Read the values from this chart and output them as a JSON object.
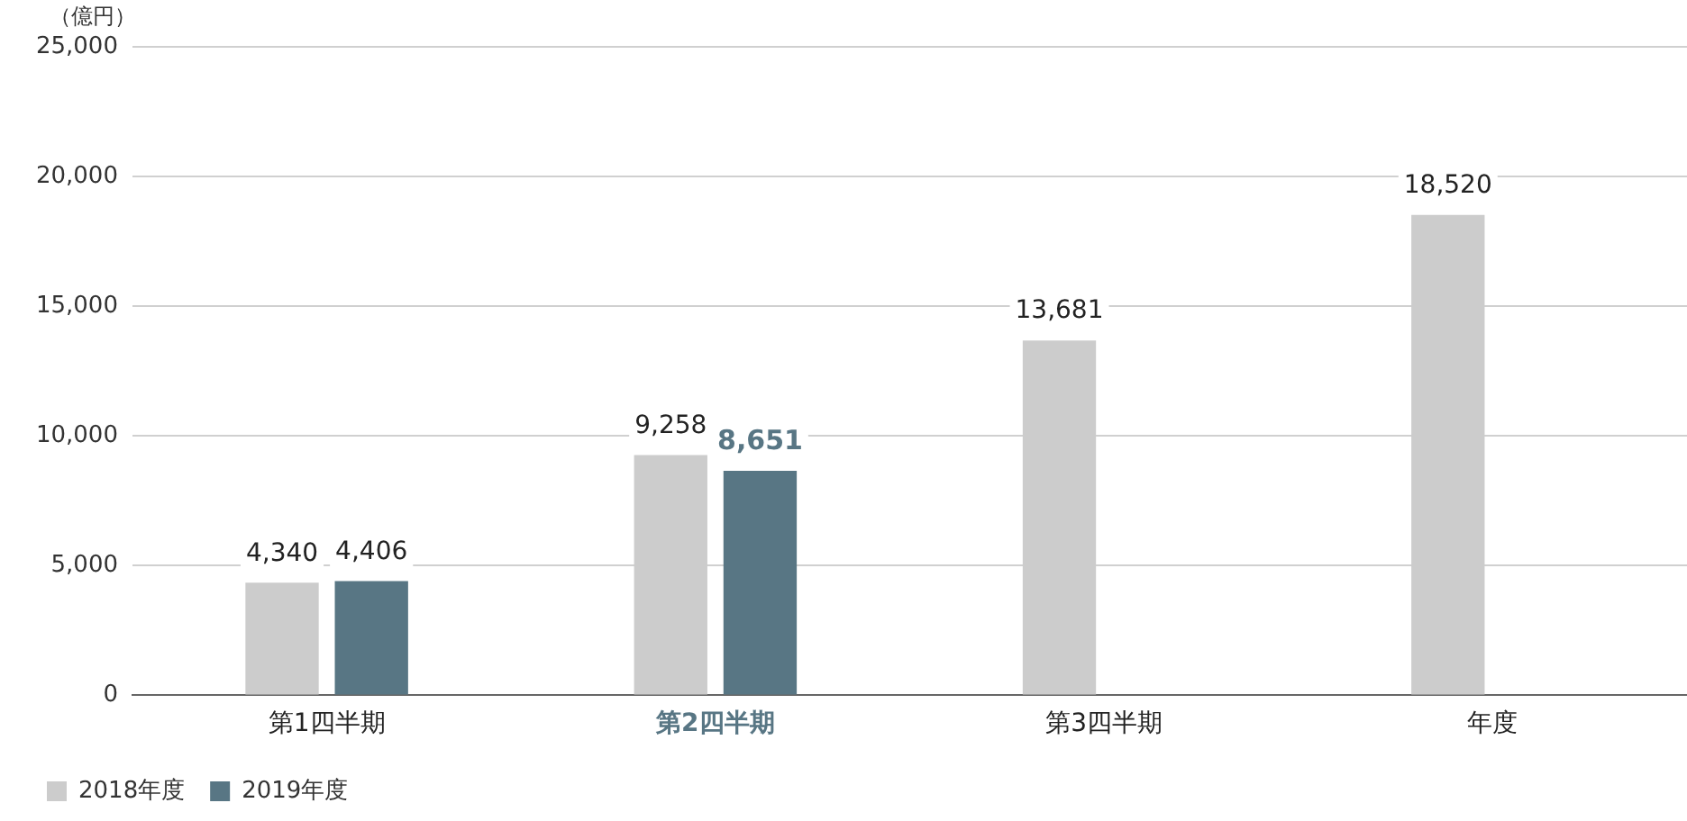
{
  "chart_data": {
    "type": "bar",
    "ylabel": "（億円）",
    "categories": [
      "第1四半期",
      "第2四半期",
      "第3四半期",
      "年度"
    ],
    "series": [
      {
        "name": "2018年度",
        "color": "#cccccc",
        "values": [
          4340,
          9258,
          13681,
          18520
        ],
        "value_labels": [
          "4,340",
          "9,258",
          "13,681",
          "18,520"
        ]
      },
      {
        "name": "2019年度",
        "color": "#587684",
        "values": [
          4406,
          8651,
          null,
          null
        ],
        "value_labels": [
          "4,406",
          "8,651",
          null,
          null
        ]
      }
    ],
    "ylim": [
      0,
      25000
    ],
    "yticks": [
      0,
      {
        "value": 5000,
        "label": "5,000"
      },
      {
        "value": 10000,
        "label": "10,000"
      },
      {
        "value": 15000,
        "label": "15,000"
      },
      {
        "value": 20000,
        "label": "20,000"
      },
      {
        "value": 25000,
        "label": "25,000"
      }
    ],
    "grid": "y",
    "legend": "bottom left"
  }
}
